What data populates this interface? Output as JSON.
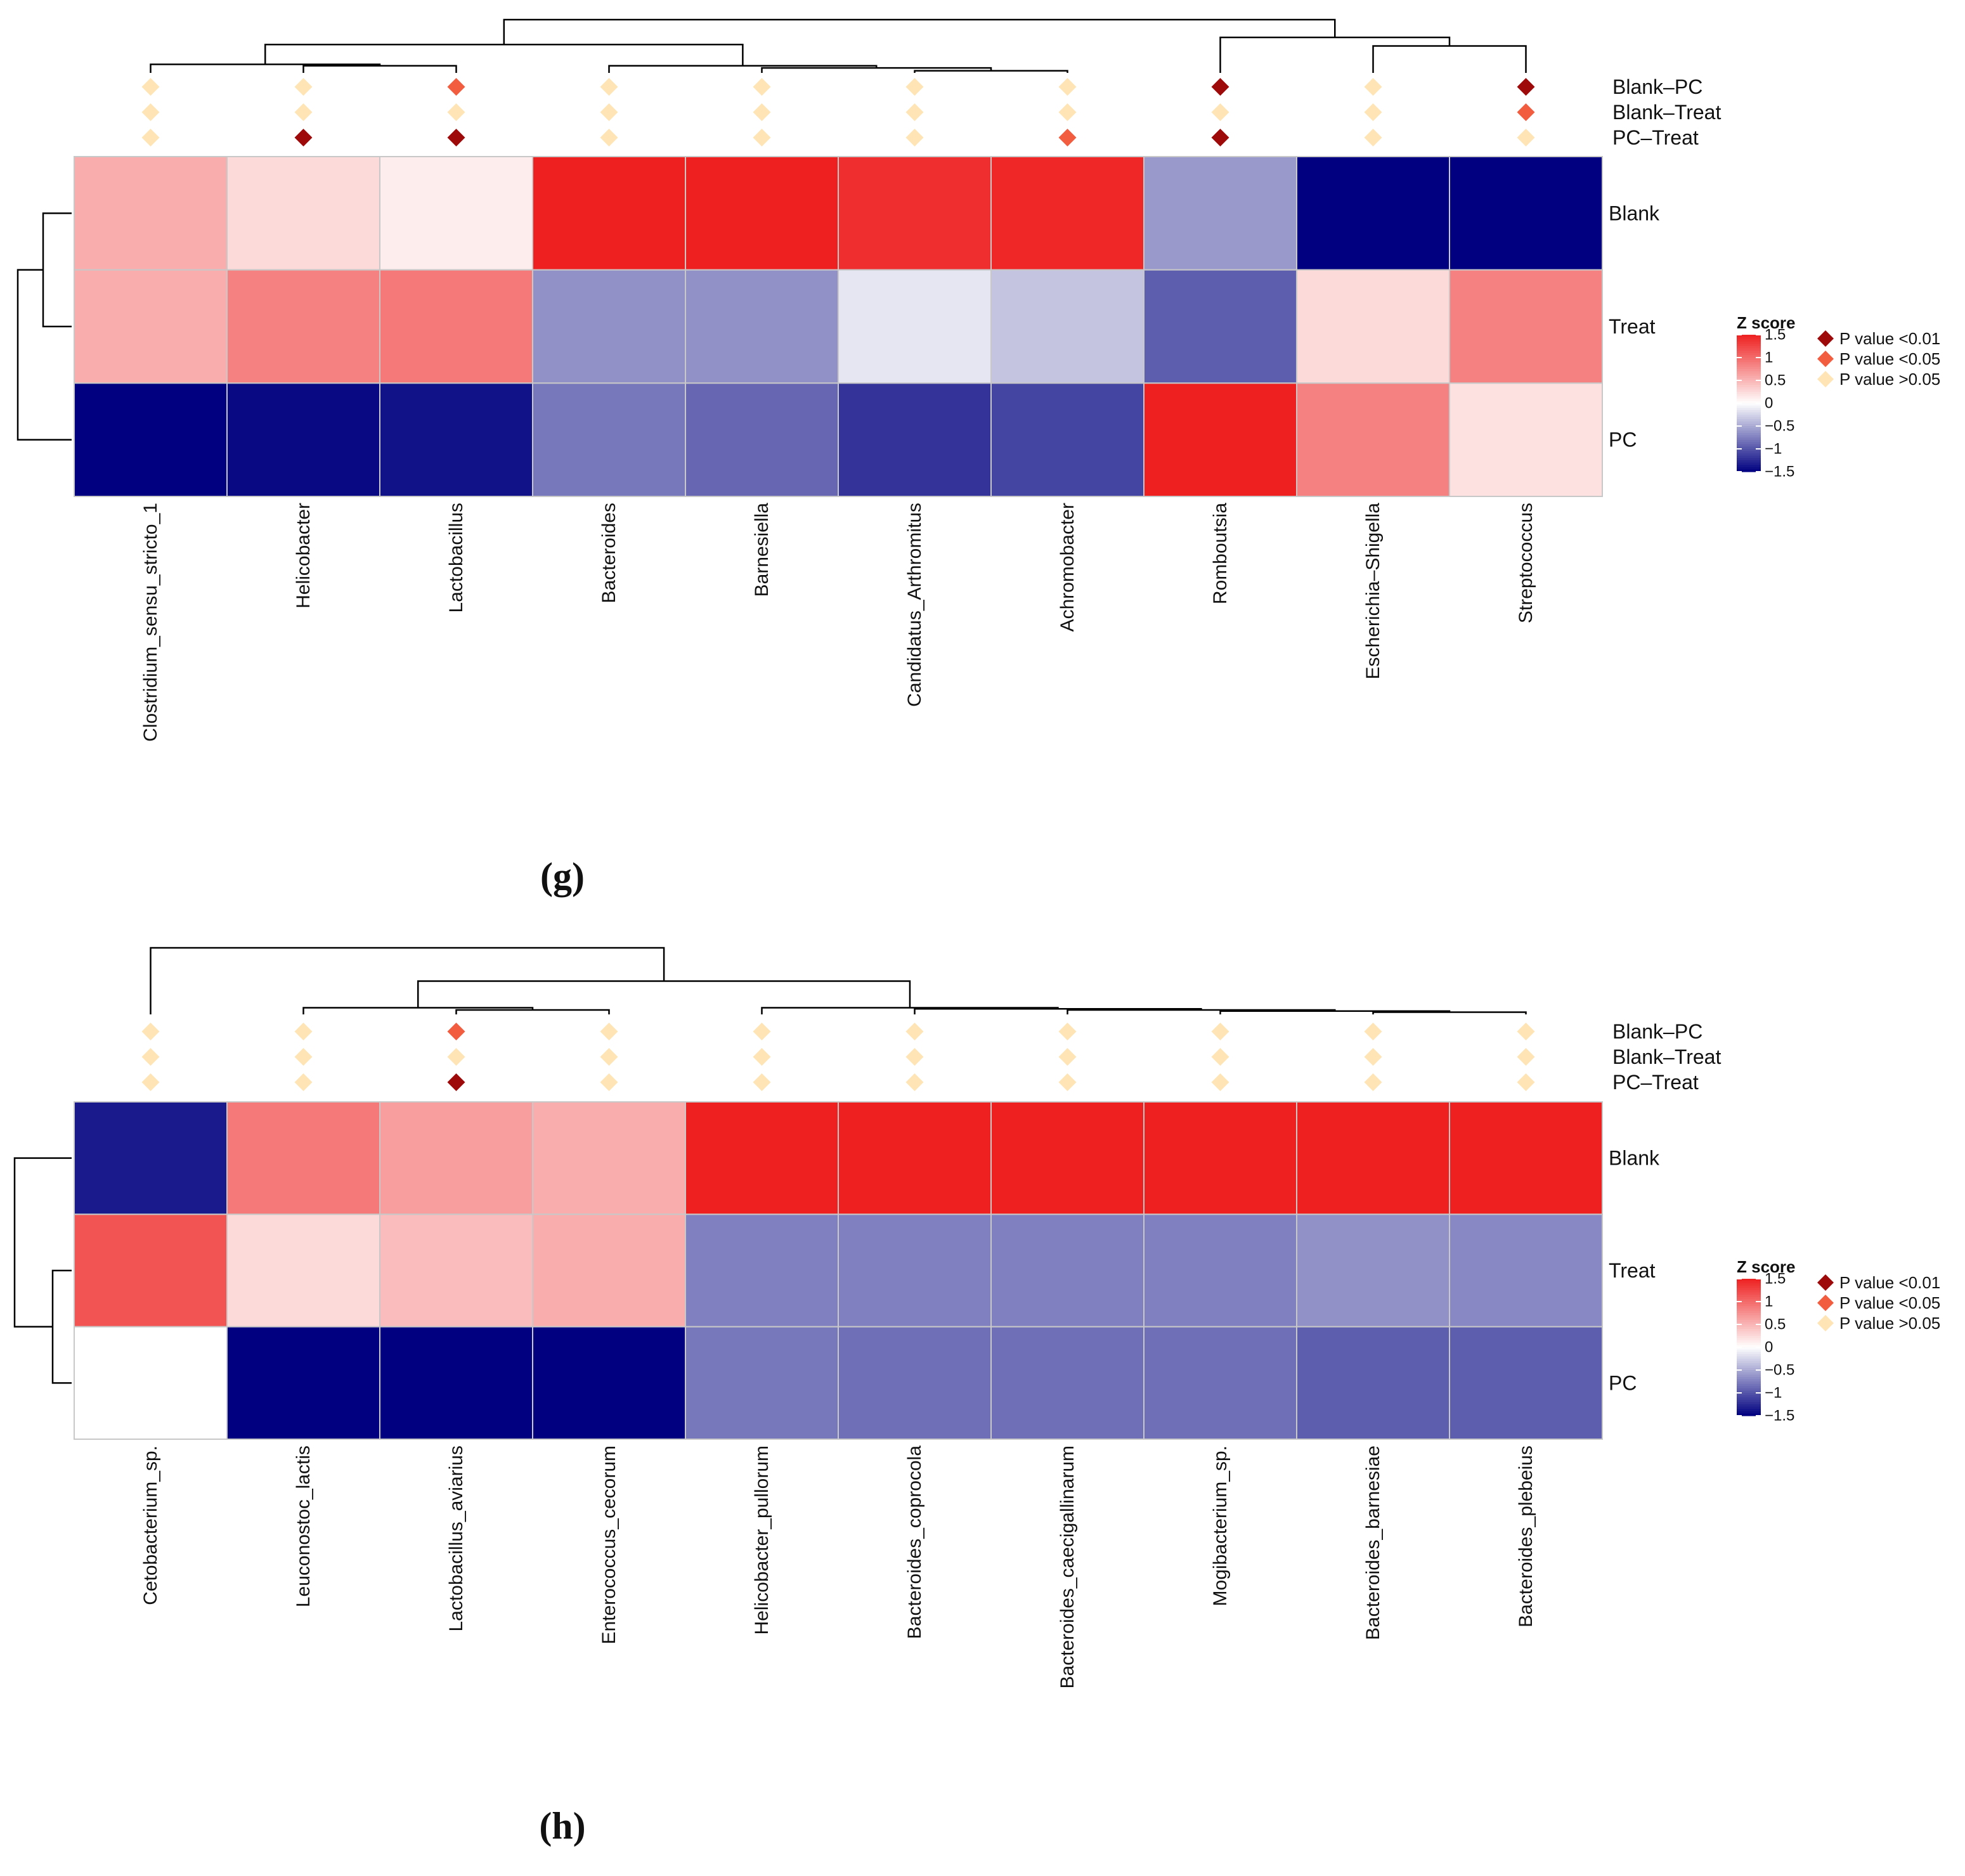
{
  "colors": {
    "high": "#EE2020",
    "mid": "#FFFFFF",
    "low": "#000080",
    "p_lt_001": "#9E0A0A",
    "p_lt_005": "#F25C3F",
    "p_gt_005": "#FFE4B5",
    "dendrogram": "#000000",
    "cell_border": "#C8C8C8"
  },
  "legend": {
    "title": "Z score",
    "ticks": [
      "1.5",
      "1",
      "0.5",
      "0",
      "−0.5",
      "−1",
      "−1.5"
    ],
    "p_labels": [
      "P value <0.01",
      "P value <0.05",
      "P value >0.05"
    ],
    "p_icons": [
      "diamond-icon",
      "diamond-icon",
      "diamond-icon"
    ]
  },
  "chart_data": [
    {
      "type": "heatmap",
      "panel_label": "(g)",
      "rows": [
        "Blank",
        "Treat",
        "PC"
      ],
      "columns": [
        "Clostridium_sensu_stricto_1",
        "Helicobacter",
        "Lactobacillus",
        "Bacteroides",
        "Barnesiella",
        "Candidatus_Arthromitus",
        "Achromobacter",
        "Romboutsia",
        "Escherichia–Shigella",
        "Streptococcus"
      ],
      "values": [
        [
          0.55,
          0.25,
          0.12,
          1.5,
          1.5,
          1.4,
          1.45,
          -0.6,
          -1.5,
          -1.5
        ],
        [
          0.55,
          0.85,
          0.9,
          -0.65,
          -0.65,
          -0.15,
          -0.35,
          -0.95,
          0.25,
          0.85
        ],
        [
          -1.5,
          -1.45,
          -1.4,
          -0.8,
          -0.9,
          -1.2,
          -1.1,
          1.5,
          0.85,
          0.2
        ]
      ],
      "comparisons": [
        "Blank–PC",
        "Blank–Treat",
        "PC–Treat"
      ],
      "significance": [
        [
          "ns",
          "ns",
          "p005",
          "ns",
          "ns",
          "ns",
          "ns",
          "p001",
          "ns",
          "p001"
        ],
        [
          "ns",
          "ns",
          "ns",
          "ns",
          "ns",
          "ns",
          "ns",
          "ns",
          "ns",
          "p005"
        ],
        [
          "ns",
          "p001",
          "p001",
          "ns",
          "ns",
          "ns",
          "p005",
          "p001",
          "ns",
          "ns"
        ]
      ],
      "col_dendrogram": [
        [
          1,
          2,
          0.1
        ],
        [
          0,
          10,
          0.12
        ],
        [
          5,
          6,
          0.03
        ],
        [
          4,
          12,
          0.07
        ],
        [
          3,
          13,
          0.1
        ],
        [
          11,
          14,
          0.4
        ],
        [
          8,
          9,
          0.38
        ],
        [
          7,
          16,
          0.5
        ],
        [
          15,
          17,
          0.75
        ]
      ],
      "row_dendrogram": [
        [
          0,
          1,
          0.45
        ],
        [
          2,
          3,
          0.85
        ]
      ],
      "xlabel": "",
      "ylabel": ""
    },
    {
      "type": "heatmap",
      "panel_label": "(h)",
      "rows": [
        "Blank",
        "Treat",
        "PC"
      ],
      "columns": [
        "Cetobacterium_sp.",
        "Leuconostoc_lactis",
        "Lactobacillus_aviarius",
        "Enterococcus_cecorum",
        "Helicobacter_pullorum",
        "Bacteroides_coprocola",
        "Bacteroides_caecigallinarum",
        "Mogibacterium_sp.",
        "Bacteroides_barnesiae",
        "Bacteroides_plebeius"
      ],
      "values": [
        [
          -1.35,
          0.9,
          0.65,
          0.55,
          1.5,
          1.5,
          1.5,
          1.5,
          1.5,
          1.5
        ],
        [
          1.15,
          0.25,
          0.45,
          0.55,
          -0.75,
          -0.75,
          -0.75,
          -0.75,
          -0.65,
          -0.7
        ],
        [
          0.0,
          -1.5,
          -1.5,
          -1.5,
          -0.8,
          -0.85,
          -0.85,
          -0.85,
          -0.95,
          -0.95
        ]
      ],
      "comparisons": [
        "Blank–PC",
        "Blank–Treat",
        "PC–Treat"
      ],
      "significance": [
        [
          "ns",
          "ns",
          "p005",
          "ns",
          "ns",
          "ns",
          "ns",
          "ns",
          "ns",
          "ns"
        ],
        [
          "ns",
          "ns",
          "ns",
          "ns",
          "ns",
          "ns",
          "ns",
          "ns",
          "ns",
          "ns"
        ],
        [
          "ns",
          "ns",
          "p001",
          "ns",
          "ns",
          "ns",
          "ns",
          "ns",
          "ns",
          "ns"
        ]
      ],
      "col_dendrogram": [
        [
          8,
          9,
          0.01
        ],
        [
          7,
          10,
          0.015
        ],
        [
          6,
          11,
          0.02
        ],
        [
          5,
          12,
          0.025
        ],
        [
          4,
          13,
          0.03
        ],
        [
          2,
          3,
          0.02
        ],
        [
          1,
          15,
          0.03
        ],
        [
          14,
          16,
          0.15
        ],
        [
          0,
          17,
          0.3
        ]
      ],
      "row_dendrogram": [
        [
          1,
          2,
          0.3
        ],
        [
          0,
          3,
          0.9
        ]
      ],
      "xlabel": "",
      "ylabel": ""
    }
  ]
}
